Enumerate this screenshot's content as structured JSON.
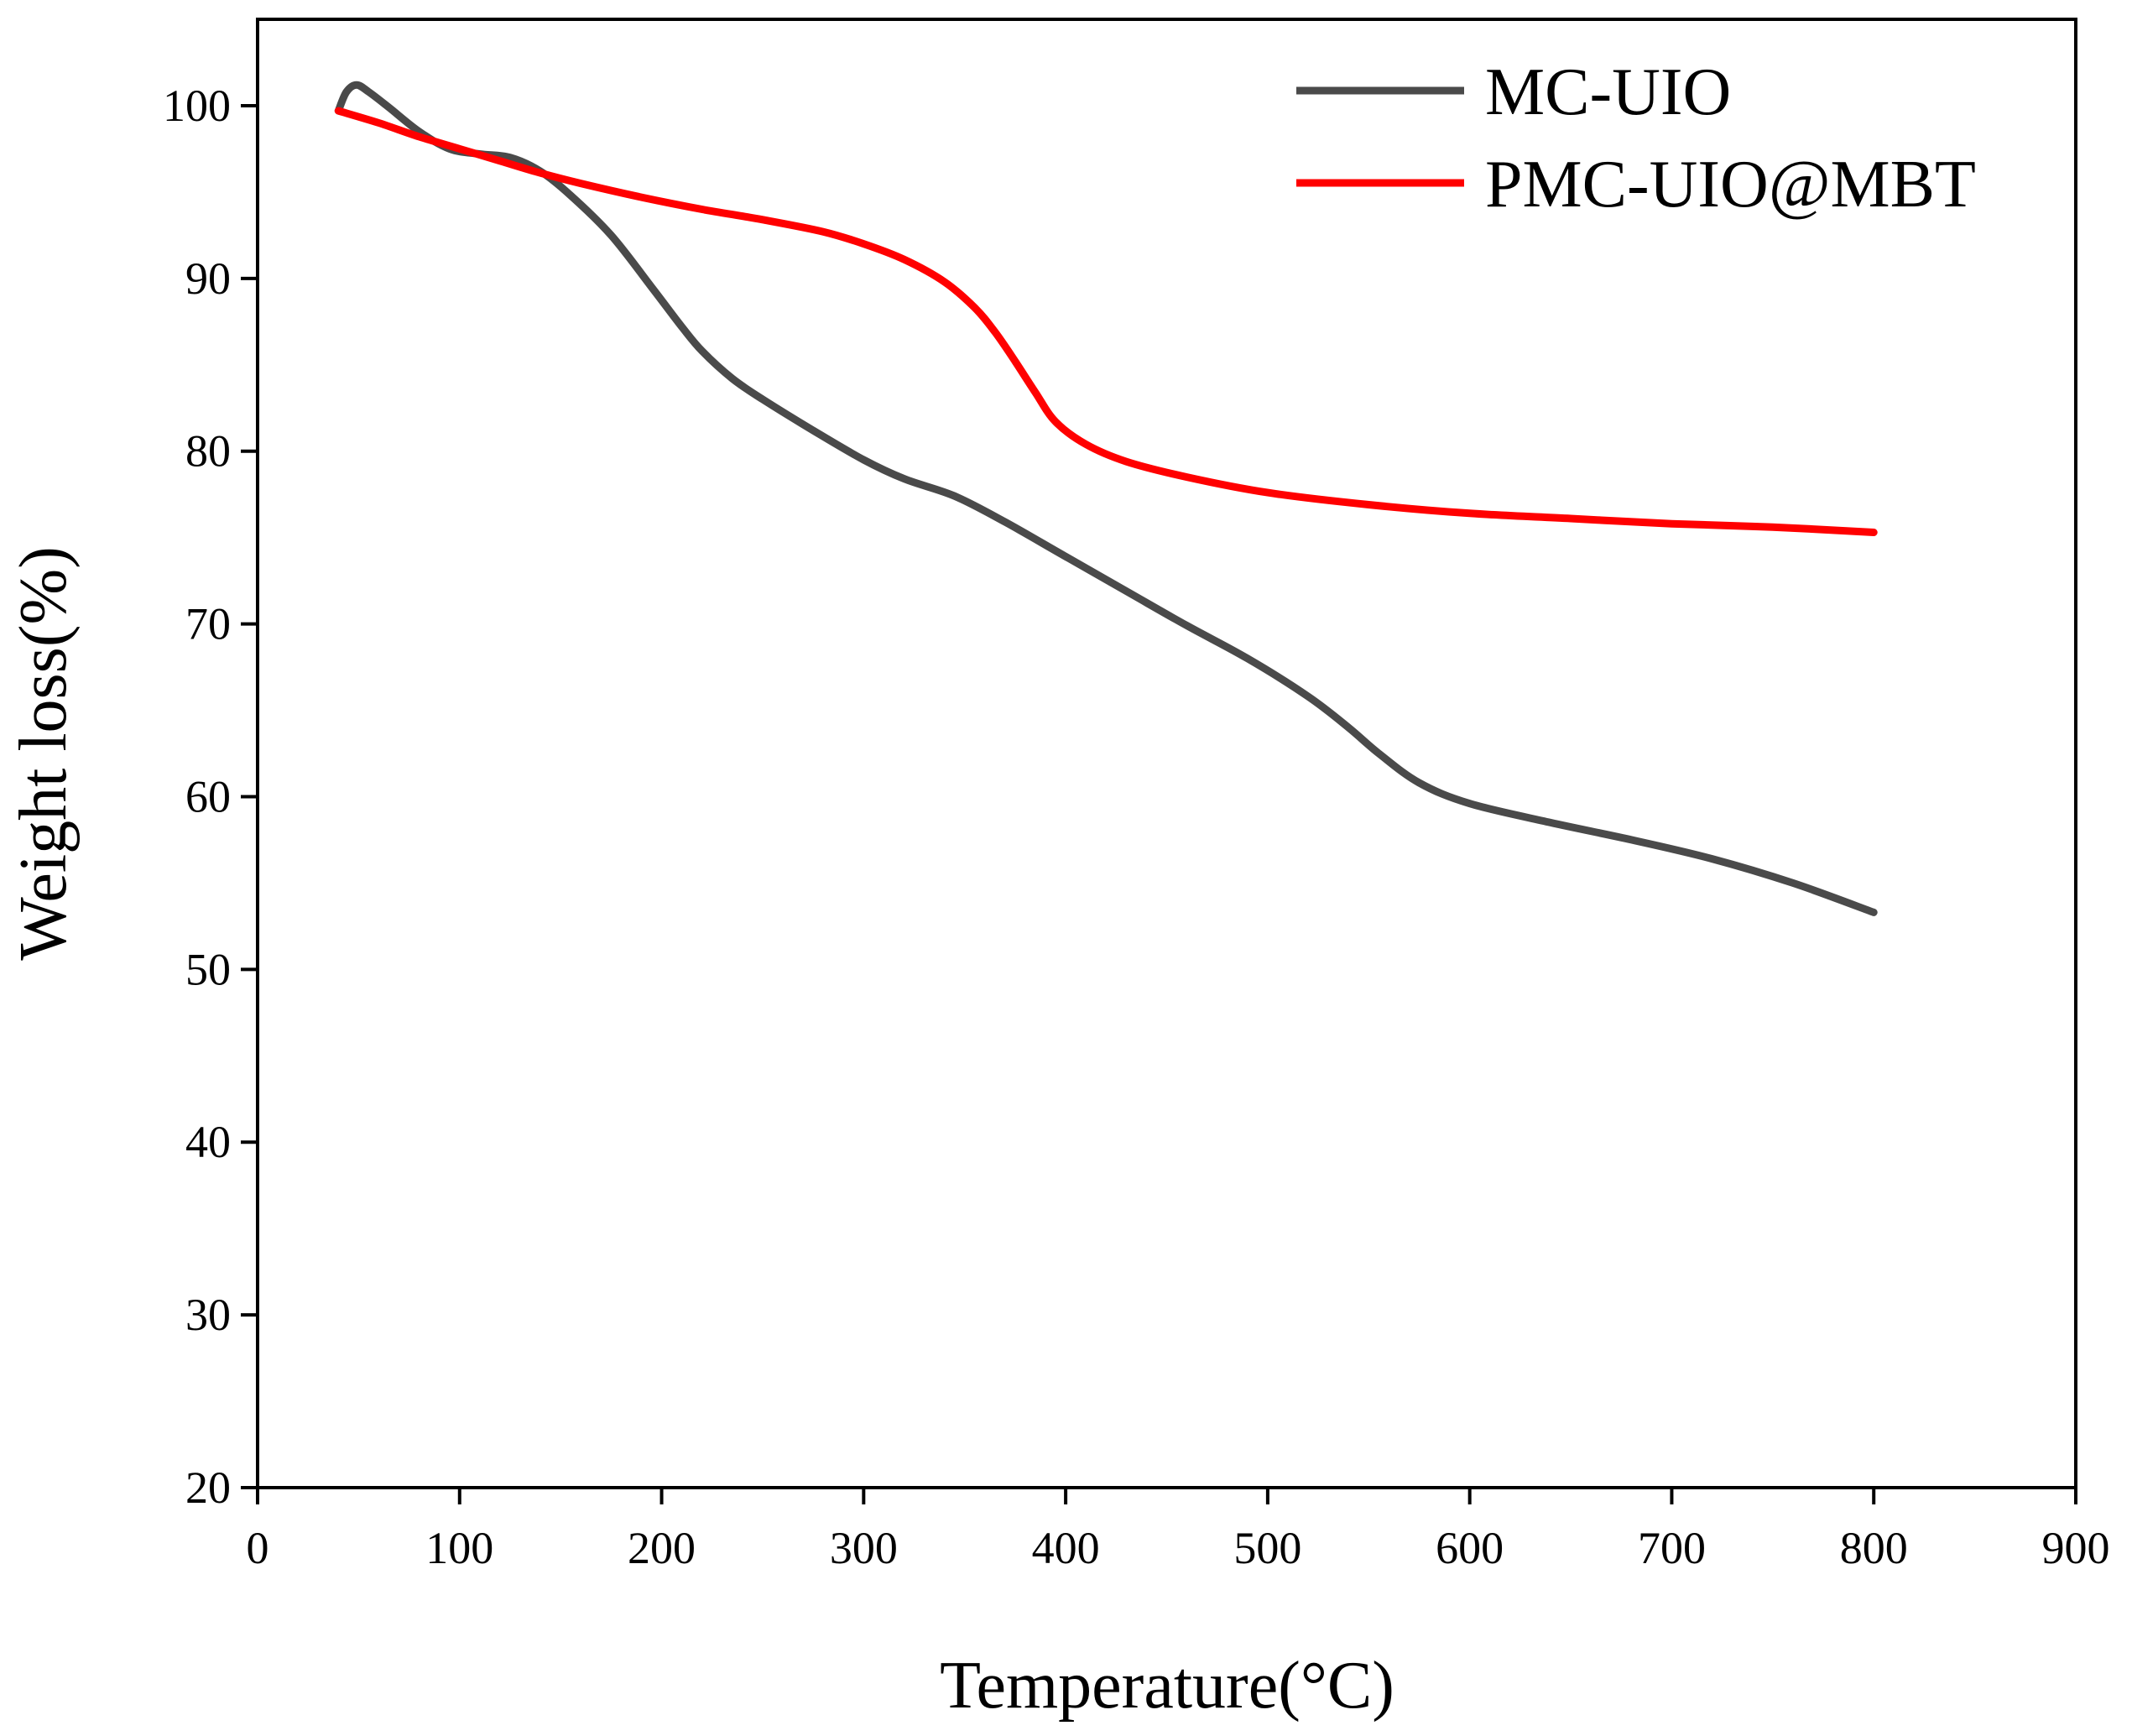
{
  "chart_data": {
    "type": "line",
    "title": "",
    "xlabel": "Temperature(°C)",
    "ylabel": "Weight loss(%)",
    "xlim": [
      0,
      900
    ],
    "ylim": [
      20,
      105
    ],
    "x_ticks": [
      0,
      100,
      200,
      300,
      400,
      500,
      600,
      700,
      800,
      900
    ],
    "y_ticks": [
      20,
      30,
      40,
      50,
      60,
      70,
      80,
      90,
      100
    ],
    "grid": false,
    "legend_position": "top-right",
    "series": [
      {
        "name": "MC-UIO",
        "color": "#4a4a4a",
        "points": [
          [
            40,
            99.7
          ],
          [
            44,
            100.8
          ],
          [
            49,
            101.2
          ],
          [
            55,
            100.8
          ],
          [
            65,
            99.9
          ],
          [
            80,
            98.5
          ],
          [
            95,
            97.5
          ],
          [
            110,
            97.2
          ],
          [
            125,
            97.0
          ],
          [
            140,
            96.2
          ],
          [
            155,
            94.8
          ],
          [
            175,
            92.5
          ],
          [
            195,
            89.5
          ],
          [
            210,
            87.2
          ],
          [
            220,
            85.8
          ],
          [
            235,
            84.2
          ],
          [
            250,
            83.0
          ],
          [
            275,
            81.2
          ],
          [
            300,
            79.5
          ],
          [
            320,
            78.4
          ],
          [
            345,
            77.4
          ],
          [
            370,
            75.9
          ],
          [
            400,
            73.9
          ],
          [
            430,
            71.9
          ],
          [
            460,
            69.9
          ],
          [
            490,
            68.0
          ],
          [
            520,
            65.8
          ],
          [
            540,
            64.0
          ],
          [
            555,
            62.5
          ],
          [
            575,
            60.8
          ],
          [
            600,
            59.6
          ],
          [
            640,
            58.5
          ],
          [
            680,
            57.5
          ],
          [
            720,
            56.4
          ],
          [
            760,
            55.0
          ],
          [
            800,
            53.3
          ]
        ]
      },
      {
        "name": "PMC-UIO@MBT",
        "color": "#ff0000",
        "points": [
          [
            40,
            99.7
          ],
          [
            60,
            99.0
          ],
          [
            80,
            98.2
          ],
          [
            100,
            97.5
          ],
          [
            120,
            96.8
          ],
          [
            140,
            96.1
          ],
          [
            160,
            95.5
          ],
          [
            190,
            94.7
          ],
          [
            220,
            94.0
          ],
          [
            250,
            93.4
          ],
          [
            280,
            92.7
          ],
          [
            300,
            92.0
          ],
          [
            320,
            91.1
          ],
          [
            340,
            89.8
          ],
          [
            355,
            88.3
          ],
          [
            365,
            86.9
          ],
          [
            375,
            85.2
          ],
          [
            385,
            83.4
          ],
          [
            395,
            81.7
          ],
          [
            410,
            80.4
          ],
          [
            430,
            79.4
          ],
          [
            460,
            78.5
          ],
          [
            500,
            77.6
          ],
          [
            550,
            76.9
          ],
          [
            600,
            76.4
          ],
          [
            650,
            76.1
          ],
          [
            700,
            75.8
          ],
          [
            750,
            75.6
          ],
          [
            800,
            75.3
          ]
        ]
      }
    ]
  }
}
